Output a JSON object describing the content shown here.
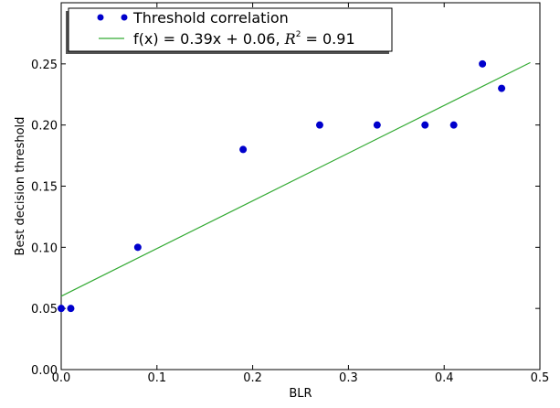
{
  "chart_data": {
    "type": "scatter",
    "xlabel": "BLR",
    "ylabel": "Best decision threshold",
    "xlim": [
      0.0,
      0.5
    ],
    "ylim": [
      0.0,
      0.3
    ],
    "x_ticks": [
      "0.0",
      "0.1",
      "0.2",
      "0.3",
      "0.4",
      "0.5"
    ],
    "y_ticks": [
      "0.00",
      "0.05",
      "0.10",
      "0.15",
      "0.20",
      "0.25"
    ],
    "grid": false,
    "legend_position": "top-left",
    "series": [
      {
        "name": "Threshold correlation",
        "kind": "scatter",
        "color": "#0000cc",
        "x": [
          0.0,
          0.01,
          0.08,
          0.19,
          0.27,
          0.33,
          0.38,
          0.41,
          0.44,
          0.46
        ],
        "y": [
          0.05,
          0.05,
          0.1,
          0.18,
          0.2,
          0.2,
          0.2,
          0.2,
          0.25,
          0.23
        ]
      },
      {
        "name": "f(x) = 0.39x + 0.06, R^2 = 0.91",
        "kind": "line",
        "color": "#33aa33",
        "slope": 0.39,
        "intercept": 0.06,
        "x_range": [
          0.0,
          0.49
        ]
      }
    ],
    "legend": {
      "entries": [
        {
          "label": "Threshold correlation"
        },
        {
          "label_prefix": "f(x) = 0.39x + 0.06, ",
          "label_math": "R",
          "label_sup": "2",
          "label_suffix": "  = 0.91"
        }
      ]
    }
  }
}
